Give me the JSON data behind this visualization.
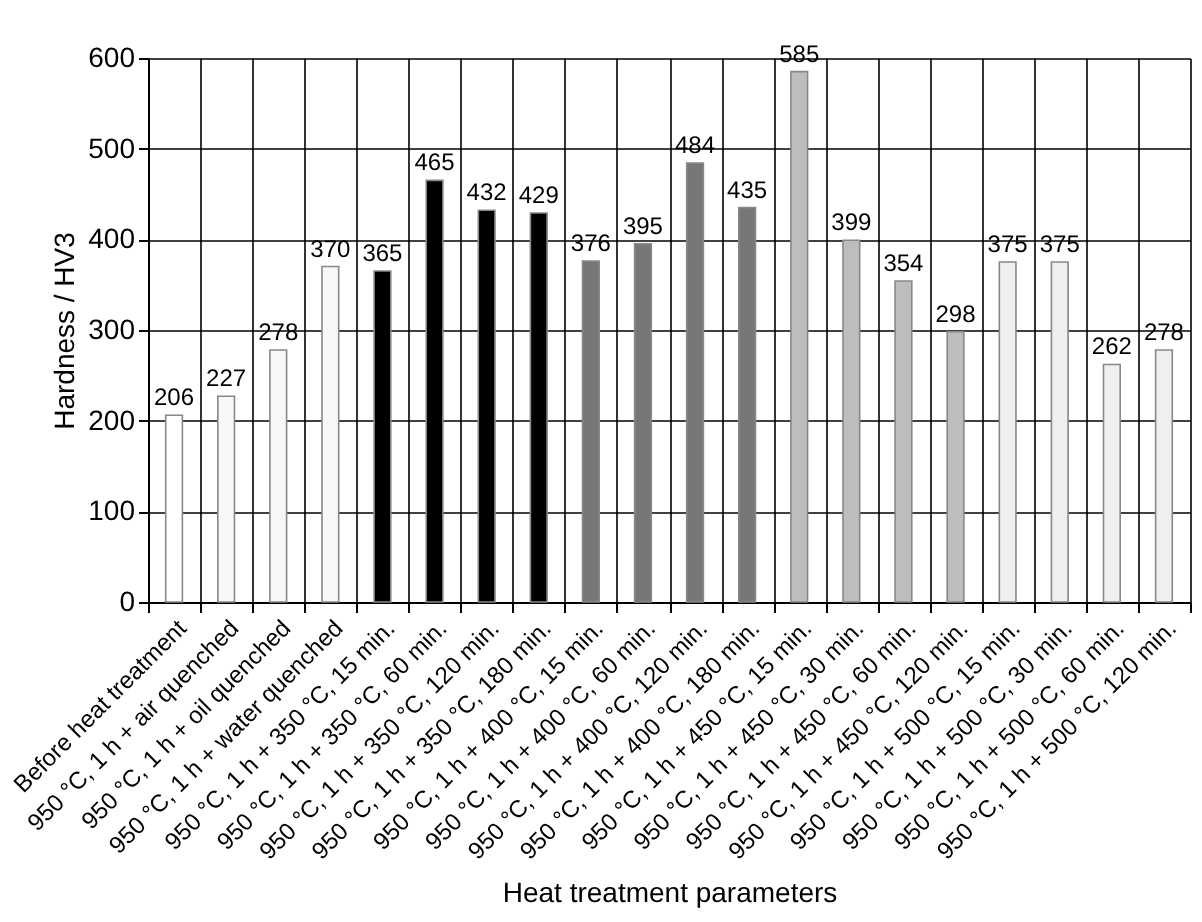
{
  "chart_data": {
    "type": "bar",
    "xlabel": "Heat treatment parameters",
    "ylabel": "Hardness / HV3",
    "categories": [
      "Before heat treatment",
      "950 °C, 1 h + air quenched",
      "950 °C, 1 h + oil quenched",
      "950 °C, 1 h + water quenched",
      "950 °C, 1 h + 350 °C, 15 min.",
      "950 °C, 1 h + 350 °C, 60 min.",
      "950 °C, 1 h + 350 °C, 120 min.",
      "950 °C, 1 h + 350 °C, 180 min.",
      "950 °C, 1 h + 400 °C, 15 min.",
      "950 °C, 1 h + 400 °C, 60 min.",
      "950 °C, 1 h + 400 °C, 120 min.",
      "950 °C, 1 h + 400 °C, 180 min.",
      "950 °C, 1 h + 450 °C, 15 min.",
      "950 °C, 1 h + 450 °C, 30 min.",
      "950 °C, 1 h + 450 °C, 60 min.",
      "950 °C, 1 h + 450 °C, 120 min.",
      "950 °C, 1 h + 500 °C, 15 min.",
      "950 °C, 1 h + 500 °C, 30 min.",
      "950 °C, 1 h + 500 °C, 60 min.",
      "950 °C, 1 h + 500 °C, 120 min."
    ],
    "values": [
      206,
      227,
      278,
      370,
      365,
      465,
      432,
      429,
      376,
      395,
      484,
      435,
      585,
      399,
      354,
      298,
      375,
      375,
      262,
      278
    ],
    "colors": [
      "#ffffff",
      "#f8f8f8",
      "#f8f8f8",
      "#f8f8f8",
      "#000000",
      "#000000",
      "#000000",
      "#000000",
      "#777777",
      "#777777",
      "#777777",
      "#777777",
      "#bdbdbd",
      "#bdbdbd",
      "#bdbdbd",
      "#bdbdbd",
      "#efefef",
      "#efefef",
      "#efefef",
      "#efefef"
    ],
    "ylim": [
      0,
      600
    ],
    "yticks": [
      0,
      100,
      200,
      300,
      400,
      500,
      600
    ],
    "grid": true,
    "data_labels": true
  }
}
